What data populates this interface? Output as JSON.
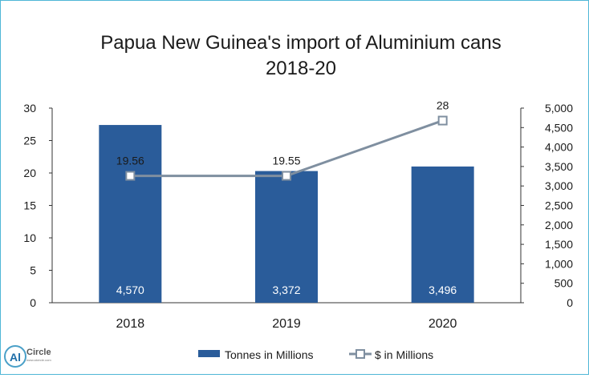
{
  "chart_data": {
    "type": "bar",
    "title_lines": [
      "Papua New Guinea's import of Aluminium cans",
      "2018-20"
    ],
    "categories": [
      "2018",
      "2019",
      "2020"
    ],
    "series": [
      {
        "name": "Tonnes in Millions",
        "kind": "bar",
        "axis": "left",
        "values": [
          27.4,
          20.3,
          21.0
        ],
        "labels": [
          "4,570",
          "3,372",
          "3,496"
        ]
      },
      {
        "name": "$ in Millions",
        "kind": "line",
        "axis": "right",
        "values": [
          3260,
          3260,
          4680
        ],
        "labels": [
          "19.56",
          "19.55",
          "28"
        ]
      }
    ],
    "left_axis": {
      "ylim": [
        0,
        30
      ],
      "ticks": [
        "0",
        "5",
        "10",
        "15",
        "20",
        "25",
        "30"
      ]
    },
    "right_axis": {
      "ylim": [
        0,
        5000
      ],
      "ticks": [
        "0",
        "500",
        "1,000",
        "1,500",
        "2,000",
        "2,500",
        "3,000",
        "3,500",
        "4,000",
        "4,500",
        "5,000"
      ]
    },
    "grid": false,
    "legend_position": "bottom",
    "colors": {
      "bar": "#2a5c9a",
      "line": "#7f8fa0",
      "marker_fill": "#ffffff",
      "frame": "#4fb6d6"
    }
  },
  "logo": {
    "text": "Circle",
    "badge": "Al",
    "tagline": "www.alcircle.com"
  }
}
